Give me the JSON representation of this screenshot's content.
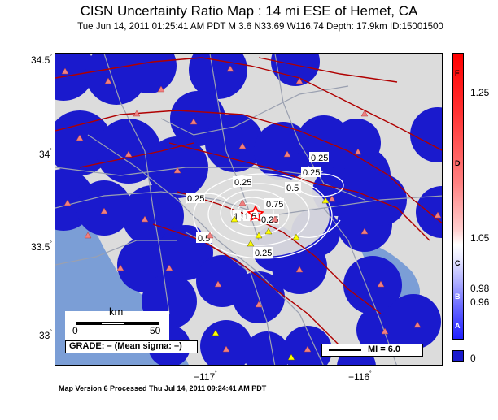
{
  "header": {
    "title": "CISN Uncertainty Ratio Map : 14 mi ESE of Hemet, CA",
    "subtitle": "Tue Jun 14, 2011 01:25:41 AM PDT   M 3.6   N33.69 W116.74   Depth: 17.9km   ID:15001500"
  },
  "axes": {
    "lat_labels": [
      "34.5",
      "34",
      "33.5",
      "33"
    ],
    "lon_labels": [
      "−117",
      "−116"
    ],
    "degree": "˚"
  },
  "colorbar": {
    "ticks": [
      "1.25",
      "1.05",
      "0.98",
      "0.96",
      "0"
    ],
    "grades": [
      "F",
      "D",
      "C",
      "B",
      "A"
    ],
    "colors": {
      "high": "#ff0000",
      "mid": "#ffffff",
      "low": "#1a1acd"
    }
  },
  "map": {
    "contour_labels": [
      "0.25",
      "0.25",
      "0.5",
      "0.25",
      "0.75",
      "1",
      "1.5",
      "0.25",
      "0.5",
      "0.25",
      "0.25"
    ],
    "colors": {
      "land": "#dcdcdc",
      "ocean": "#7b9ed6",
      "uncertainty_low": "#1a1acd",
      "fault": "#b00000",
      "road": "#9aa0b0",
      "station_red": "#f08080",
      "station_yellow": "#ffff00",
      "epicenter": "#ff0000"
    },
    "icons": [
      "station-triangle-icon",
      "epicenter-star-icon"
    ]
  },
  "scale": {
    "unit": "km",
    "start": "0",
    "end": "50"
  },
  "grade": {
    "text": "GRADE: – (Mean sigma: –)"
  },
  "legend": {
    "mi_text": "MI = 6.0"
  },
  "footer": {
    "text": "Map Version 6 Processed Thu Jul 14, 2011 09:24:41 AM PDT"
  }
}
